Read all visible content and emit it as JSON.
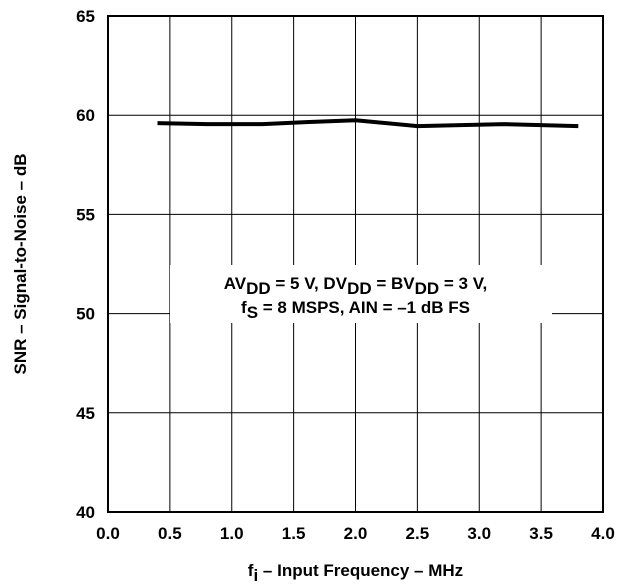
{
  "chart_data": {
    "type": "line",
    "title": "",
    "xlabel": {
      "main": "f",
      "sub": "i",
      "rest": " – Input Frequency – MHz"
    },
    "ylabel": "SNR – Signal-to-Noise – dB",
    "xlim": [
      0.0,
      4.0
    ],
    "ylim": [
      40,
      65
    ],
    "x_ticks": [
      "0.0",
      "0.5",
      "1.0",
      "1.5",
      "2.0",
      "2.5",
      "3.0",
      "3.5",
      "4.0"
    ],
    "y_ticks": [
      "40",
      "45",
      "50",
      "55",
      "60",
      "65"
    ],
    "grid": true,
    "series": [
      {
        "x": [
          0.4,
          0.8,
          1.25,
          1.6,
          2.0,
          2.5,
          3.2,
          3.8
        ],
        "y": [
          59.6,
          59.55,
          59.55,
          59.65,
          59.75,
          59.45,
          59.55,
          59.45
        ]
      }
    ],
    "annotation": {
      "line1": [
        {
          "t": "AV",
          "sub": false
        },
        {
          "t": "DD",
          "sub": true
        },
        {
          "t": " = 5 V, DV",
          "sub": false
        },
        {
          "t": "DD",
          "sub": true
        },
        {
          "t": " = BV",
          "sub": false
        },
        {
          "t": "DD",
          "sub": true
        },
        {
          "t": " = 3 V,",
          "sub": false
        }
      ],
      "line2": [
        {
          "t": "f",
          "sub": false
        },
        {
          "t": "S",
          "sub": true
        },
        {
          "t": " = 8 MSPS, AIN = –1 dB FS",
          "sub": false
        }
      ]
    }
  }
}
